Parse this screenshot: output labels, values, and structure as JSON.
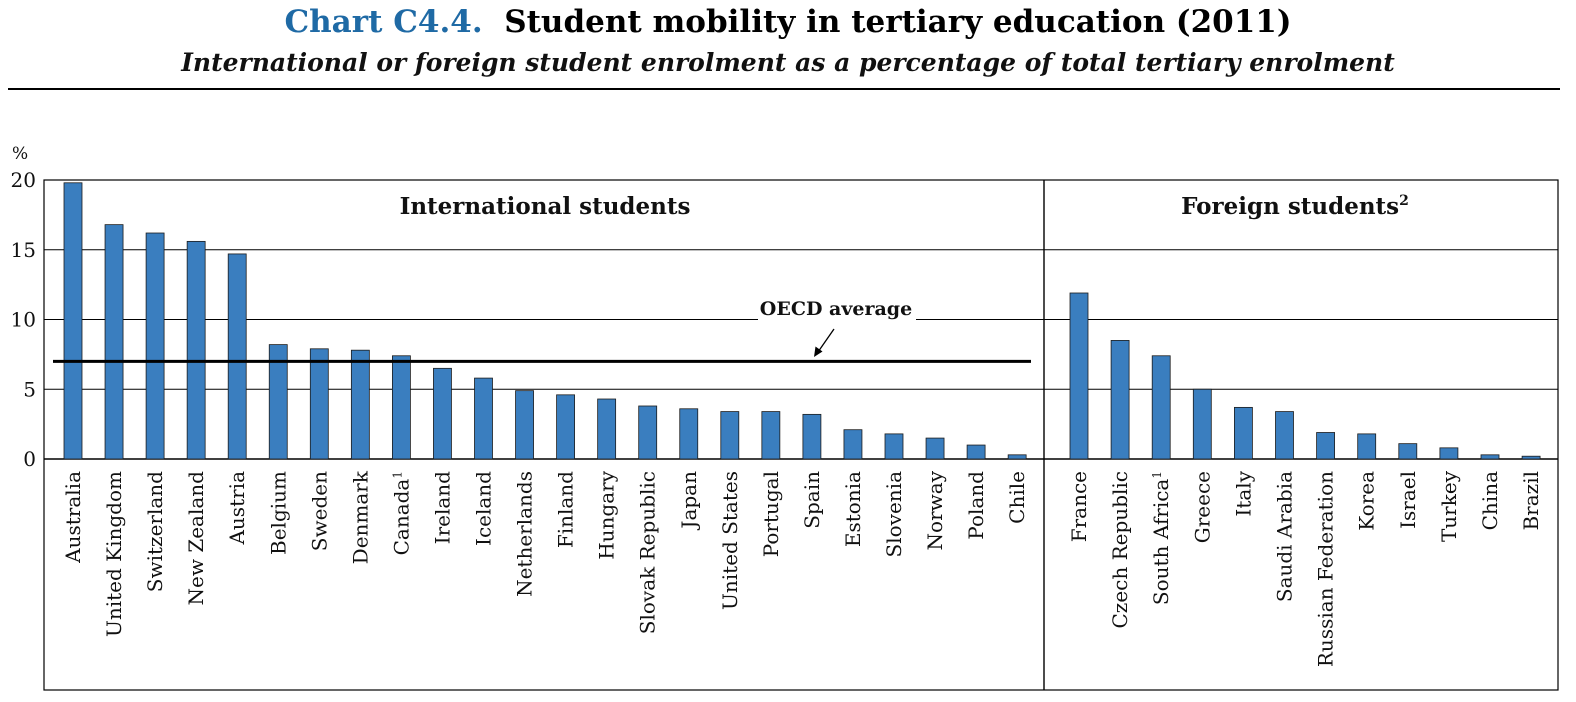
{
  "header": {
    "title_prefix": "Chart C4.4.",
    "title": "Student mobility in tertiary education (2011)",
    "subtitle": "International or foreign student enrolment as a percentage of total tertiary enrolment"
  },
  "colors": {
    "bar": "#3a7ebf",
    "bar_edge": "#1c1c1c",
    "title_prefix": "#1f6aa5"
  },
  "chart_data": {
    "type": "bar",
    "y_unit_label": "%",
    "ylim": [
      0,
      20
    ],
    "yticks": [
      0,
      5,
      10,
      15,
      20
    ],
    "grid": true,
    "reference_line": {
      "label": "OECD average",
      "value": 7.0
    },
    "panels": [
      {
        "title": "International students",
        "title_sup": "",
        "categories": [
          "Australia",
          "United Kingdom",
          "Switzerland",
          "New Zealand",
          "Austria",
          "Belgium",
          "Sweden",
          "Denmark",
          "Canada",
          "Ireland",
          "Iceland",
          "Netherlands",
          "Finland",
          "Hungary",
          "Slovak Republic",
          "Japan",
          "United States",
          "Portugal",
          "Spain",
          "Estonia",
          "Slovenia",
          "Norway",
          "Poland",
          "Chile"
        ],
        "category_sups": [
          "",
          "",
          "",
          "",
          "",
          "",
          "",
          "",
          "1",
          "",
          "",
          "",
          "",
          "",
          "",
          "",
          "",
          "",
          "",
          "",
          "",
          "",
          "",
          ""
        ],
        "values": [
          19.8,
          16.8,
          16.2,
          15.6,
          14.7,
          8.2,
          7.9,
          7.8,
          7.4,
          6.5,
          5.8,
          4.9,
          4.6,
          4.3,
          3.8,
          3.6,
          3.4,
          3.4,
          3.2,
          2.1,
          1.8,
          1.5,
          1.0,
          0.3
        ]
      },
      {
        "title": "Foreign students",
        "title_sup": "2",
        "categories": [
          "France",
          "Czech Republic",
          "South Africa",
          "Greece",
          "Italy",
          "Saudi Arabia",
          "Russian Federation",
          "Korea",
          "Israel",
          "Turkey",
          "China",
          "Brazil"
        ],
        "category_sups": [
          "",
          "",
          "1",
          "",
          "",
          "",
          "",
          "",
          "",
          "",
          "",
          ""
        ],
        "values": [
          11.9,
          8.5,
          7.4,
          5.0,
          3.7,
          3.4,
          1.9,
          1.8,
          1.1,
          0.8,
          0.3,
          0.2
        ]
      }
    ]
  }
}
